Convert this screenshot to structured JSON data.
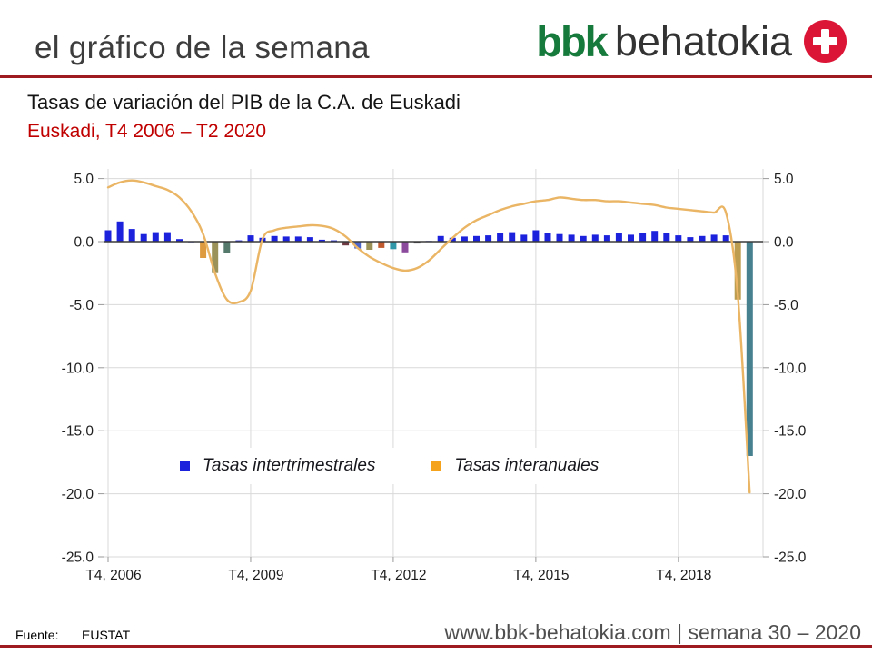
{
  "header": {
    "title": "el gráfico de la semana",
    "logo_bbk": "bbk",
    "logo_behatokia": "behatokia"
  },
  "footer": {
    "source_label": "Fuente:",
    "source_value": "EUSTAT",
    "website": "www.bbk-behatokia.com | semana 30 – 2020"
  },
  "colors": {
    "rule_red": "#9e1b20",
    "subtitle_red": "#c00000",
    "logo_green": "#157a3b",
    "logo_circle_red": "#db1535",
    "bar_blue": "#1c22dc",
    "line_tan": "#eab564",
    "legend_orange": "#f5a21d",
    "grid_gray": "#d9d9d9",
    "zero_axis": "#3a3a3a"
  },
  "chart_data": {
    "type": "combo-bar-line",
    "title": "Tasas de variación del PIB de la C.A. de Euskadi",
    "subtitle": "Euskadi, T4 2006 – T2 2020",
    "ylim": [
      -25,
      5
    ],
    "grid": true,
    "legend_position": "inside-bottom",
    "yticks": [
      "5.0",
      "0.0",
      "-5.0",
      "-10.0",
      "-15.0",
      "-20.0",
      "-25.0"
    ],
    "ytick_values": [
      5,
      0,
      -5,
      -10,
      -15,
      -20,
      -25
    ],
    "xticks": [
      {
        "index": 0,
        "label": "T4, 2006"
      },
      {
        "index": 12,
        "label": "T4, 2009"
      },
      {
        "index": 24,
        "label": "T4, 2012"
      },
      {
        "index": 36,
        "label": "T4, 2015"
      },
      {
        "index": 48,
        "label": "T4, 2018"
      }
    ],
    "categories": [
      "T4 2006",
      "T1 2007",
      "T2 2007",
      "T3 2007",
      "T4 2007",
      "T1 2008",
      "T2 2008",
      "T3 2008",
      "T4 2008",
      "T1 2009",
      "T2 2009",
      "T3 2009",
      "T4 2009",
      "T1 2010",
      "T2 2010",
      "T3 2010",
      "T4 2010",
      "T1 2011",
      "T2 2011",
      "T3 2011",
      "T4 2011",
      "T1 2012",
      "T2 2012",
      "T3 2012",
      "T4 2012",
      "T1 2013",
      "T2 2013",
      "T3 2013",
      "T4 2013",
      "T1 2014",
      "T2 2014",
      "T3 2014",
      "T4 2014",
      "T1 2015",
      "T2 2015",
      "T3 2015",
      "T4 2015",
      "T1 2016",
      "T2 2016",
      "T3 2016",
      "T4 2016",
      "T1 2017",
      "T2 2017",
      "T3 2017",
      "T4 2017",
      "T1 2018",
      "T2 2018",
      "T3 2018",
      "T4 2018",
      "T1 2019",
      "T2 2019",
      "T3 2019",
      "T4 2019",
      "T1 2020",
      "T2 2020"
    ],
    "series": [
      {
        "name": "Tasas intertrimestrales",
        "type": "bar",
        "color": "#1c22dc",
        "values": [
          0.9,
          1.6,
          1.0,
          0.6,
          0.75,
          0.75,
          0.2,
          -0.05,
          -1.3,
          -2.5,
          -0.9,
          0.1,
          0.5,
          0.3,
          0.45,
          0.4,
          0.4,
          0.35,
          0.15,
          0.1,
          -0.3,
          -0.55,
          -0.65,
          -0.5,
          -0.6,
          -0.85,
          -0.15,
          0.05,
          0.45,
          0.3,
          0.4,
          0.45,
          0.5,
          0.65,
          0.75,
          0.55,
          0.9,
          0.65,
          0.6,
          0.55,
          0.45,
          0.55,
          0.5,
          0.7,
          0.55,
          0.65,
          0.85,
          0.65,
          0.5,
          0.35,
          0.45,
          0.55,
          0.5,
          -4.6,
          -17.0
        ],
        "point_colors": {
          "8": "#dd9a3e",
          "9": "#9a9258",
          "10": "#55796b",
          "20": "#6f3a41",
          "21": "#4b64c8",
          "22": "#9a9258",
          "23": "#c05a2e",
          "24": "#2f97a8",
          "25": "#8c4a9c",
          "26": "#4a4a55",
          "53": "#bd9d50",
          "54": "#47808f"
        }
      },
      {
        "name": "Tasas interanuales",
        "type": "line",
        "color": "#eab564",
        "legend_color": "#f5a21d",
        "values": [
          4.3,
          4.7,
          4.85,
          4.7,
          4.4,
          4.1,
          3.5,
          2.4,
          0.6,
          -2.5,
          -4.6,
          -4.8,
          -3.9,
          0.2,
          0.9,
          1.1,
          1.2,
          1.3,
          1.25,
          1.0,
          0.4,
          -0.5,
          -1.2,
          -1.7,
          -2.1,
          -2.3,
          -2.1,
          -1.5,
          -0.6,
          0.3,
          1.1,
          1.7,
          2.1,
          2.5,
          2.8,
          3.0,
          3.2,
          3.3,
          3.5,
          3.4,
          3.3,
          3.3,
          3.2,
          3.2,
          3.1,
          3.0,
          2.9,
          2.7,
          2.6,
          2.5,
          2.4,
          2.3,
          2.3,
          -4.2,
          -19.9
        ]
      }
    ]
  }
}
